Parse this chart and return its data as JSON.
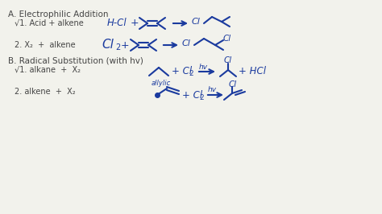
{
  "background_color": "#f2f2ec",
  "text_color_dark": "#444444",
  "text_color_blue": "#1a3a9e",
  "title_A": "A. Electrophilic Addition",
  "check1_A": "√1. Acid + alkene",
  "sub2_A": "2. X₂  +  alkene",
  "title_B": "B. Radical Substitution (with hv)",
  "check1_B": "√1. alkane  +  X₂",
  "sub2_B": "2. alkene  +  X₂",
  "fig_width": 4.74,
  "fig_height": 2.66,
  "dpi": 100
}
